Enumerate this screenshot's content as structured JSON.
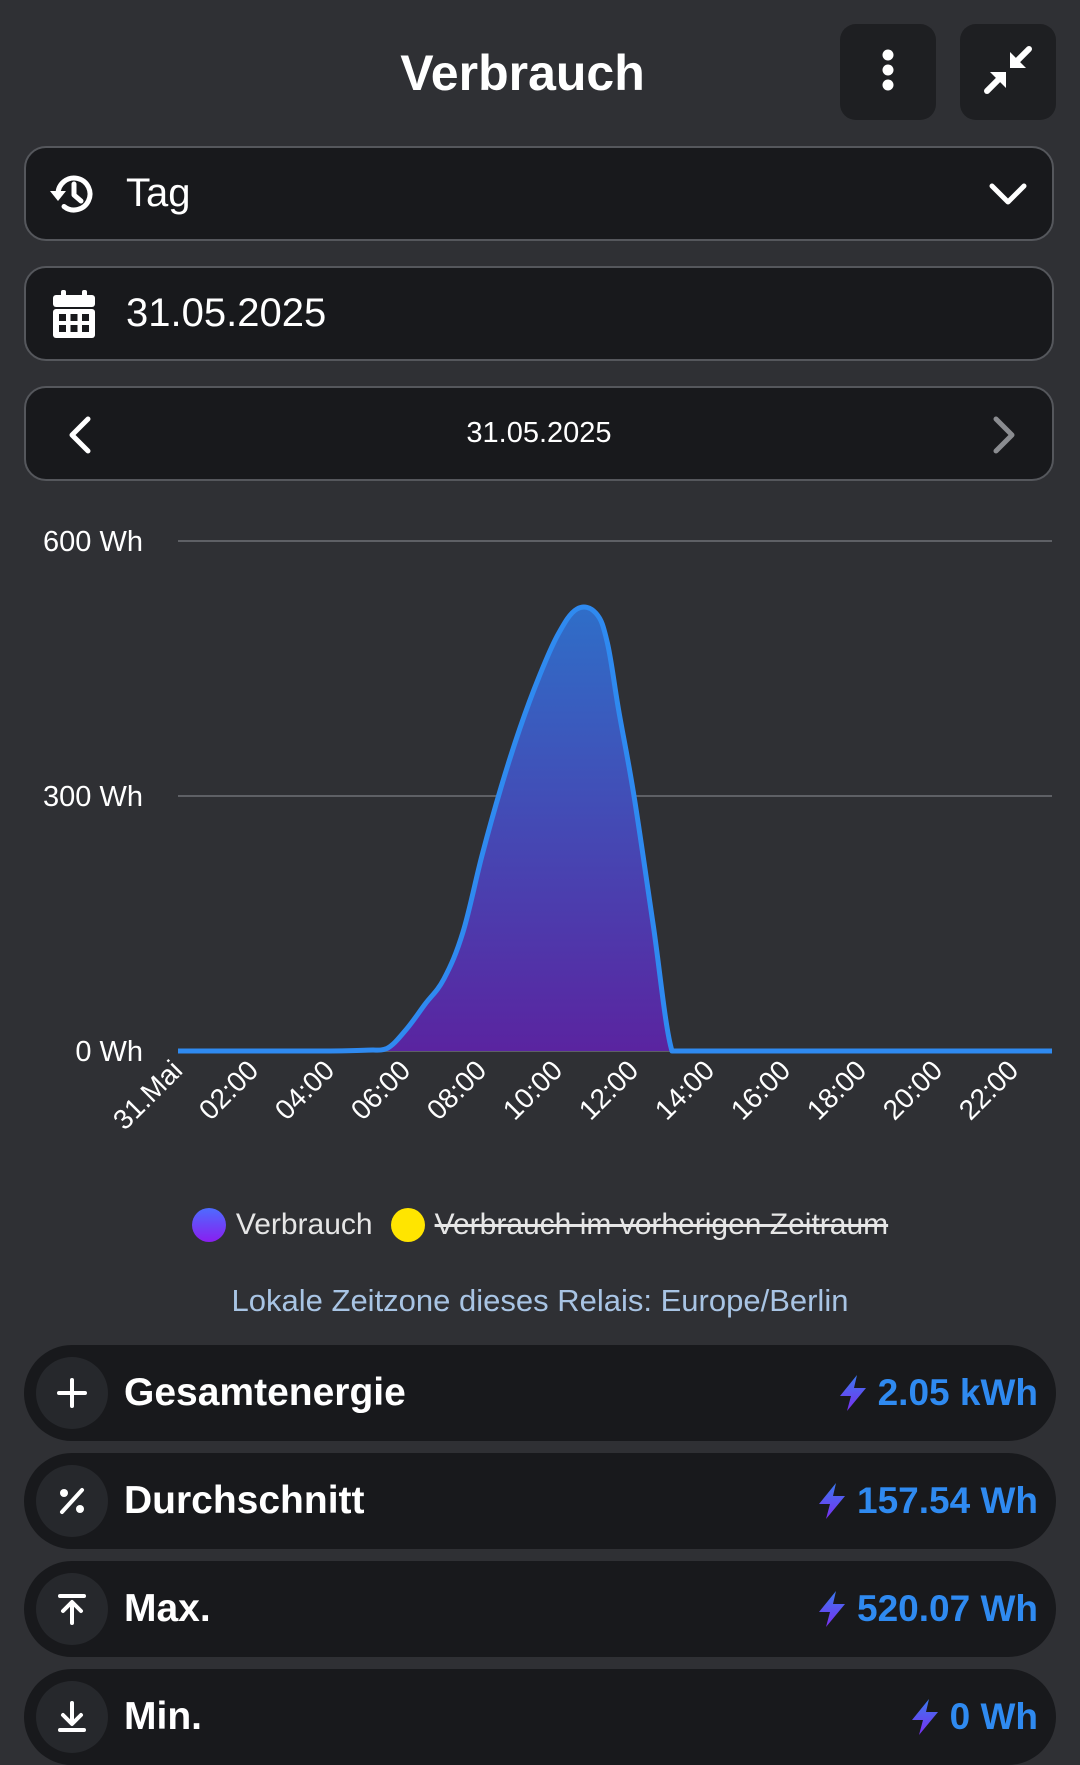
{
  "header": {
    "title": "Verbrauch"
  },
  "period_select": {
    "value": "Tag",
    "icon": "history-icon"
  },
  "date_field": {
    "value": "31.05.2025",
    "icon": "calendar-icon"
  },
  "date_nav": {
    "label": "31.05.2025"
  },
  "colors": {
    "line": "#2f8af0",
    "fill_top": "#2f6ec8",
    "fill_bottom": "#5a24a0",
    "legend_current_top": "#4d6cff",
    "legend_current_bottom": "#8a1ef0",
    "legend_previous": "#ffe500",
    "accent": "#2f8af0"
  },
  "chart_data": {
    "type": "area",
    "unit": "Wh",
    "y_ticks": [
      "600 Wh",
      "300 Wh",
      "0 Wh"
    ],
    "ylim": [
      0,
      600
    ],
    "x_ticks": [
      "31.Mai",
      "02:00",
      "04:00",
      "06:00",
      "08:00",
      "10:00",
      "12:00",
      "14:00",
      "16:00",
      "18:00",
      "20:00",
      "22:00"
    ],
    "x_hours": [
      0,
      1,
      2,
      3,
      4,
      5,
      5.5,
      6,
      6.5,
      7,
      7.5,
      8,
      8.5,
      9,
      9.5,
      10,
      10.5,
      11,
      11.3,
      11.6,
      12,
      12.5,
      13,
      13.5,
      14,
      15,
      16,
      17,
      18,
      19,
      20,
      21,
      22,
      23
    ],
    "series": [
      {
        "name": "Verbrauch",
        "values": [
          0,
          0,
          0,
          0,
          0,
          1,
          3,
          25,
          55,
          85,
          140,
          230,
          310,
          380,
          440,
          490,
          520,
          515,
          480,
          400,
          300,
          150,
          0,
          0,
          0,
          0,
          0,
          0,
          0,
          0,
          0,
          0,
          0,
          0
        ],
        "visible": true
      },
      {
        "name": "Verbrauch im vorherigen Zeitraum",
        "values": [],
        "visible": false
      }
    ],
    "grid": true,
    "legend_position": "bottom"
  },
  "legend": {
    "current": "Verbrauch",
    "previous": "Verbrauch im vorherigen Zeitraum"
  },
  "timezone_note": "Lokale Zeitzone dieses Relais: Europe/Berlin",
  "stats": {
    "total": {
      "label": "Gesamtenergie",
      "value": "2.05 kWh",
      "icon": "plus-icon"
    },
    "average": {
      "label": "Durchschnitt",
      "value": "157.54 Wh",
      "icon": "percent-icon"
    },
    "max": {
      "label": "Max.",
      "value": "520.07 Wh",
      "icon": "arrow-up-bar-icon"
    },
    "min": {
      "label": "Min.",
      "value": "0 Wh",
      "icon": "arrow-down-bar-icon"
    }
  }
}
